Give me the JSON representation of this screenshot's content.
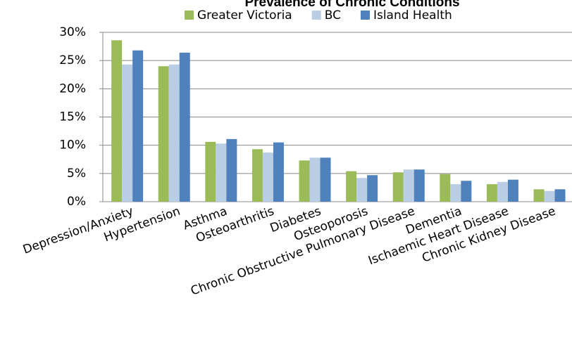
{
  "chart_data": {
    "type": "bar",
    "title": "Prevalence of Chronic Conditions",
    "categories": [
      "Depression/Anxiety",
      "Hypertension",
      "Asthma",
      "Osteoarthritis",
      "Diabetes",
      "Osteoporosis",
      "Chronic Obstructive Pulmonary Disease",
      "Dementia",
      "Ischaemic Heart Disease",
      "Chronic Kidney Disease"
    ],
    "series": [
      {
        "name": "Greater Victoria",
        "color": "#9bbb59",
        "values": [
          28.6,
          24.0,
          10.6,
          9.3,
          7.3,
          5.4,
          5.2,
          4.9,
          3.1,
          2.2
        ]
      },
      {
        "name": "BC",
        "color": "#b9cde5",
        "values": [
          24.3,
          24.3,
          10.3,
          8.7,
          7.8,
          4.2,
          5.7,
          3.1,
          3.5,
          1.9
        ]
      },
      {
        "name": "Island Health",
        "color": "#4f81bd",
        "values": [
          26.8,
          26.4,
          11.1,
          10.5,
          7.8,
          4.7,
          5.7,
          3.7,
          3.9,
          2.2
        ]
      }
    ],
    "ylim": [
      0,
      30
    ],
    "yticks": [
      {
        "value": 0,
        "label": "0%"
      },
      {
        "value": 5,
        "label": "5%"
      },
      {
        "value": 10,
        "label": "10%"
      },
      {
        "value": 15,
        "label": "15%"
      },
      {
        "value": 20,
        "label": "20%"
      },
      {
        "value": 25,
        "label": "25%"
      },
      {
        "value": 30,
        "label": "30%"
      }
    ],
    "grid": true
  }
}
